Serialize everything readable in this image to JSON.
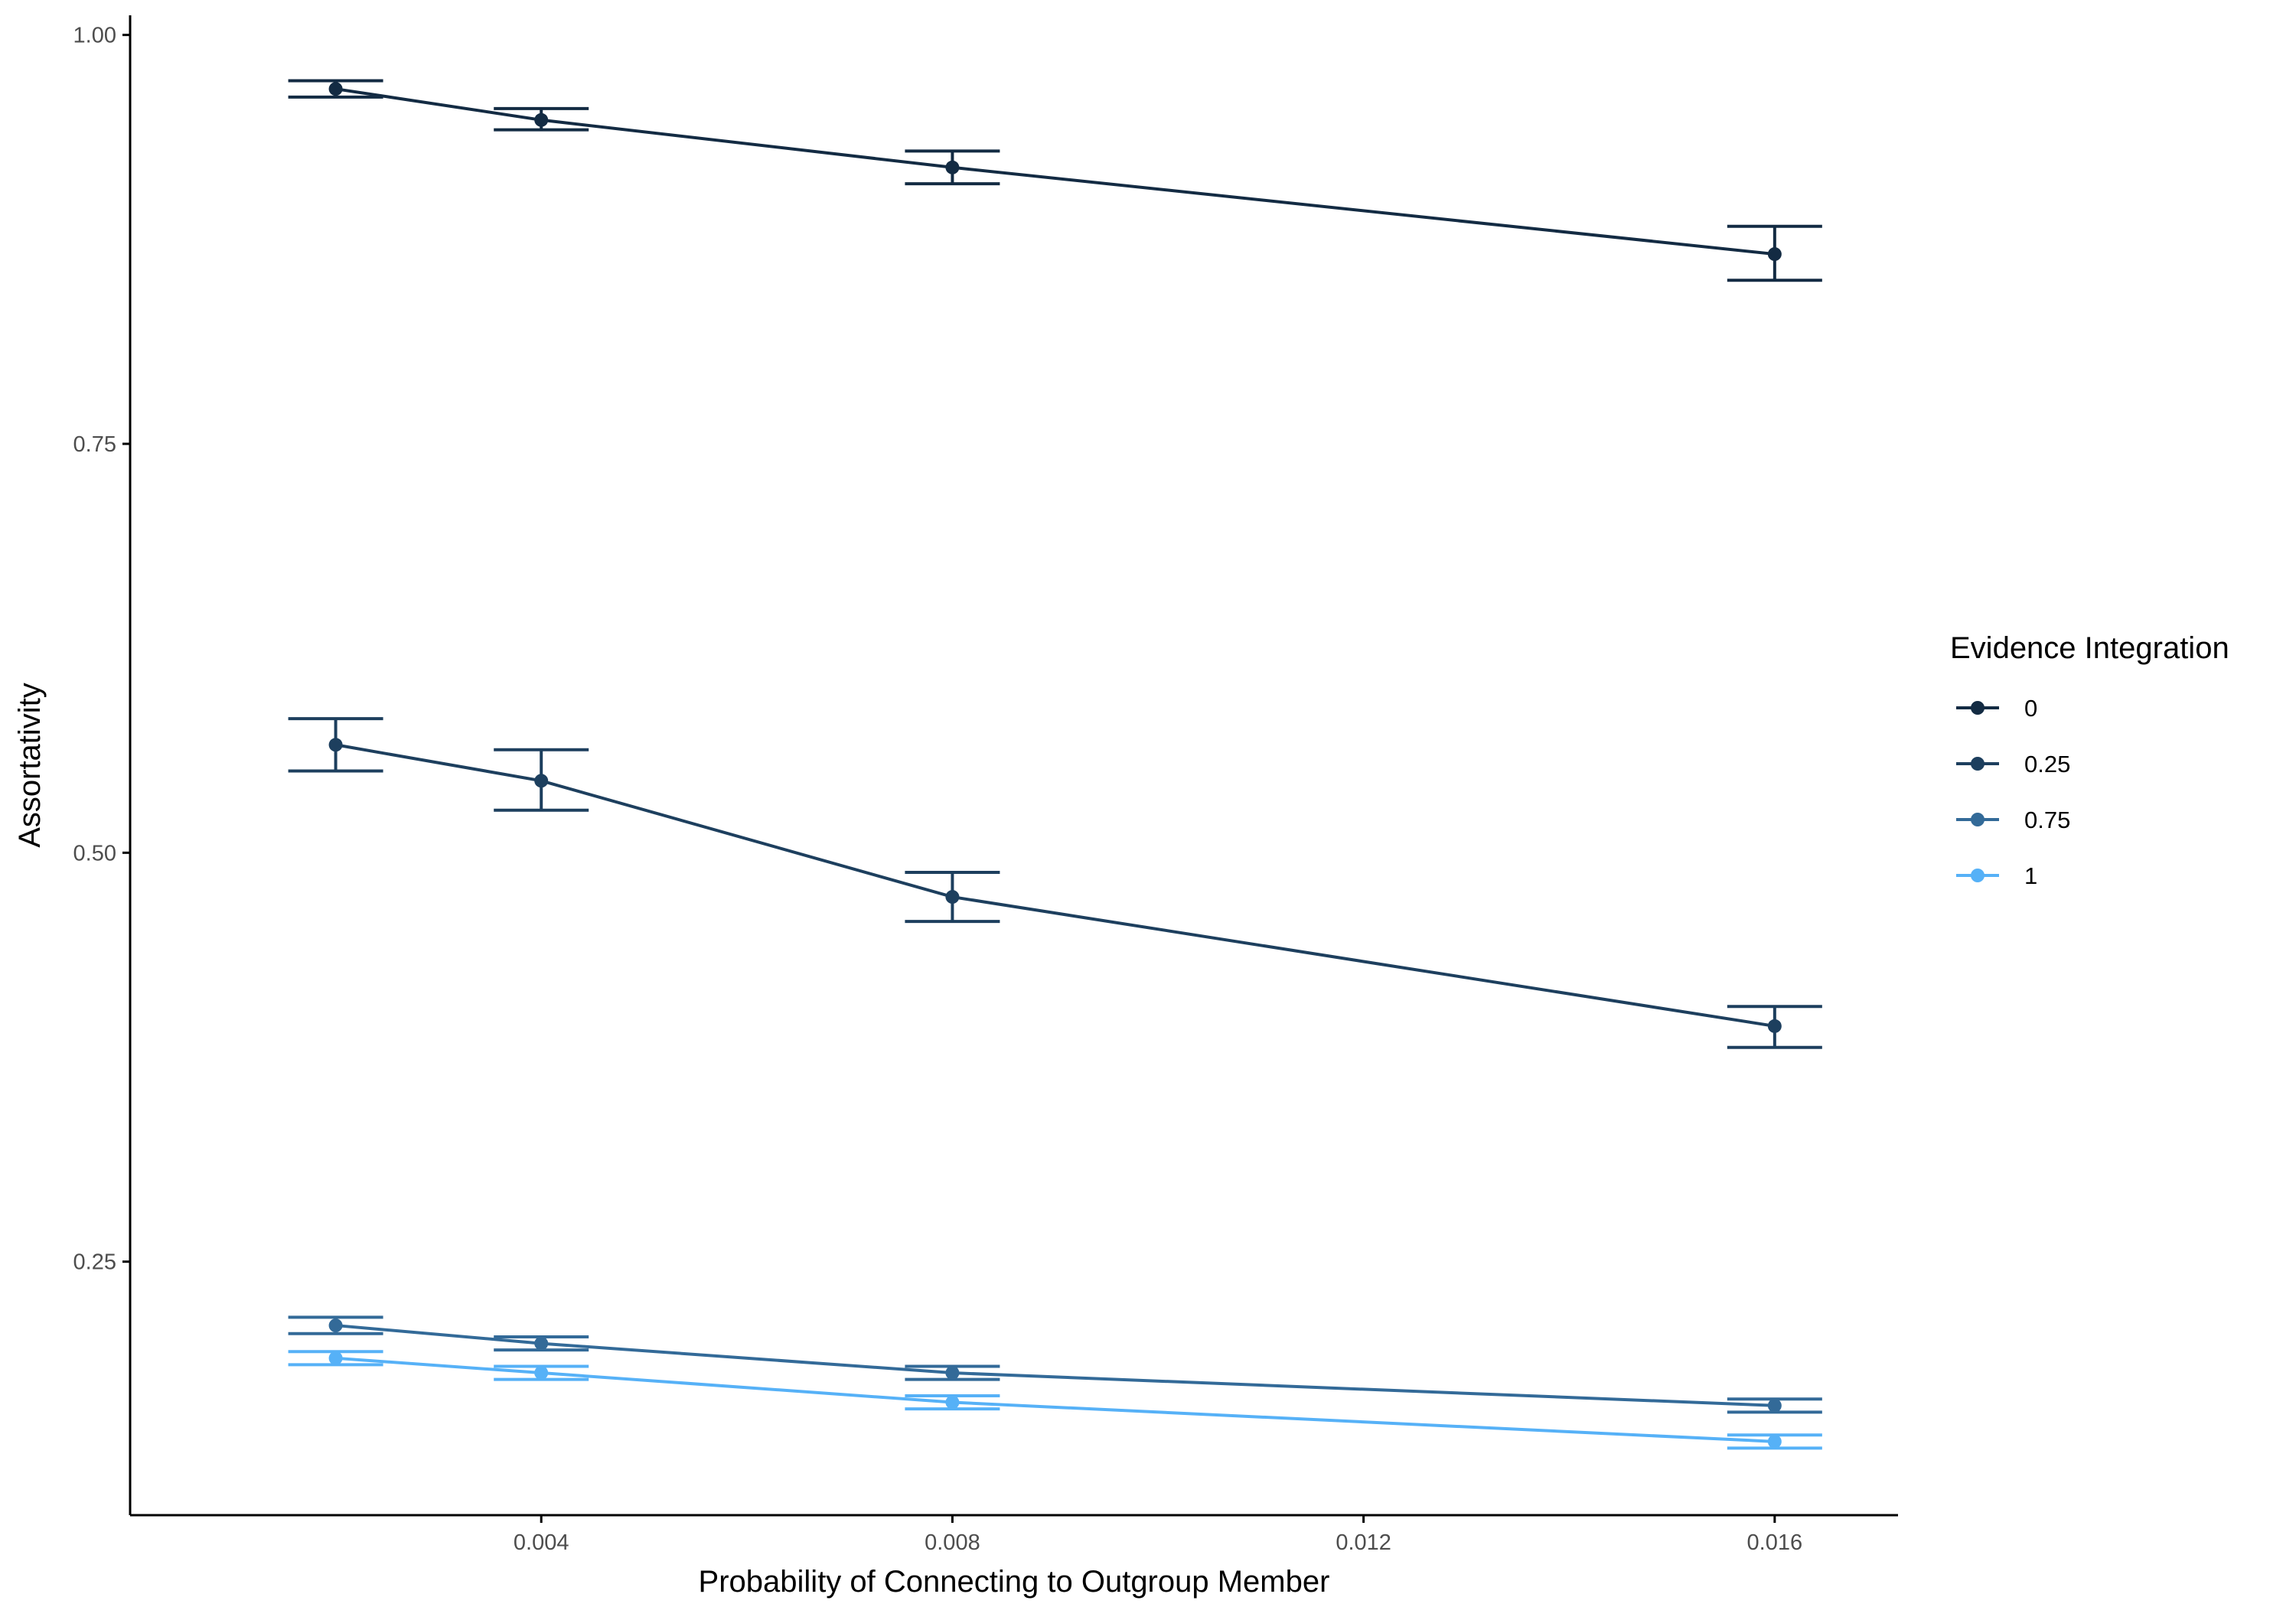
{
  "chart_data": {
    "type": "line",
    "title": "",
    "xlabel": "Probability of Connecting to Outgroup Member",
    "ylabel": "Assortativity",
    "x": [
      0.002,
      0.004,
      0.008,
      0.016
    ],
    "xlim": [
      0.0,
      0.0172
    ],
    "ylim": [
      0.095,
      1.012
    ],
    "x_ticks": [
      {
        "value": 0.004,
        "label": "0.004"
      },
      {
        "value": 0.008,
        "label": "0.008"
      },
      {
        "value": 0.012,
        "label": "0.012"
      },
      {
        "value": 0.016,
        "label": "0.016"
      }
    ],
    "y_ticks": [
      {
        "value": 0.25,
        "label": "0.25"
      },
      {
        "value": 0.5,
        "label": "0.50"
      },
      {
        "value": 0.75,
        "label": "0.75"
      },
      {
        "value": 1.0,
        "label": "1.00"
      }
    ],
    "grid": false,
    "legend": {
      "title": "Evidence Integration",
      "position": "right"
    },
    "series": [
      {
        "name": "0",
        "color": "#132B43",
        "values": [
          0.967,
          0.948,
          0.919,
          0.866
        ],
        "err_low": [
          0.962,
          0.942,
          0.909,
          0.85
        ],
        "err_high": [
          0.972,
          0.955,
          0.929,
          0.883
        ]
      },
      {
        "name": "0.25",
        "color": "#1D3F5E",
        "values": [
          0.566,
          0.544,
          0.473,
          0.394
        ],
        "err_low": [
          0.55,
          0.526,
          0.458,
          0.381
        ],
        "err_high": [
          0.582,
          0.563,
          0.488,
          0.406
        ]
      },
      {
        "name": "0.75",
        "color": "#336A98",
        "values": [
          0.211,
          0.2,
          0.182,
          0.162
        ],
        "err_low": [
          0.206,
          0.196,
          0.178,
          0.158
        ],
        "err_high": [
          0.216,
          0.204,
          0.186,
          0.166
        ]
      },
      {
        "name": "1",
        "color": "#56B1F7",
        "values": [
          0.191,
          0.182,
          0.164,
          0.14
        ],
        "err_low": [
          0.187,
          0.178,
          0.16,
          0.136
        ],
        "err_high": [
          0.195,
          0.186,
          0.168,
          0.144
        ]
      }
    ]
  }
}
